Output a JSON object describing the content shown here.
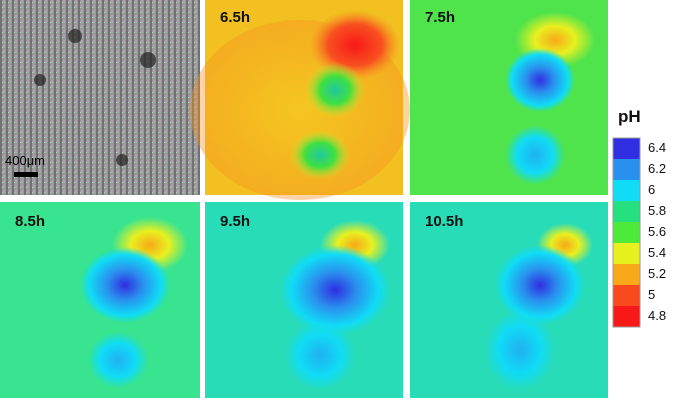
{
  "panels": [
    {
      "label": "6.5h"
    },
    {
      "label": "7.5h"
    },
    {
      "label": "8.5h"
    },
    {
      "label": "9.5h"
    },
    {
      "label": "10.5h"
    }
  ],
  "scale_bar": {
    "label": "400μm"
  },
  "colorbar": {
    "title": "pH",
    "ticks": [
      6.4,
      6.2,
      6,
      5.8,
      5.6,
      5.4,
      5.2,
      5,
      4.8
    ],
    "colors": [
      "#2f2ee0",
      "#2a90ee",
      "#10dcf6",
      "#24e07e",
      "#4eea3a",
      "#e8f020",
      "#f8a818",
      "#f84a1c",
      "#f81818"
    ]
  }
}
